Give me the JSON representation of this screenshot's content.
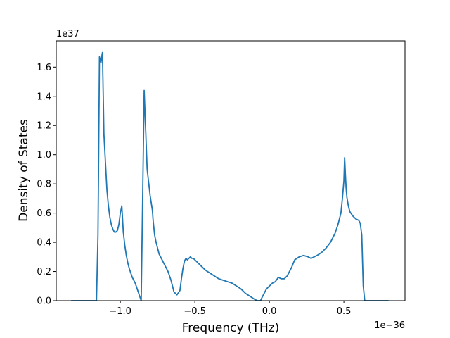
{
  "chart_data": {
    "type": "line",
    "xlabel": "Frequency (THz)",
    "ylabel": "Density of States",
    "x_offset_text": "1e−36",
    "y_offset_text": "1e37",
    "x_scale": "1e-36",
    "y_scale": "1e37",
    "xlim": [
      -1.43,
      0.91
    ],
    "ylim": [
      0.0,
      1.78
    ],
    "x_ticks": [
      -1.0,
      -0.5,
      0.0,
      0.5
    ],
    "x_tick_labels": [
      "−1.0",
      "−0.5",
      "0.0",
      "0.5"
    ],
    "y_ticks": [
      0.0,
      0.2,
      0.4,
      0.6,
      0.8,
      1.0,
      1.2,
      1.4,
      1.6
    ],
    "y_tick_labels": [
      "0.0",
      "0.2",
      "0.4",
      "0.6",
      "0.8",
      "1.0",
      "1.2",
      "1.4",
      "1.6"
    ],
    "grid": false,
    "line_color": "#1f77b4",
    "series": [
      {
        "x": [
          -1.33,
          -1.16,
          -1.15,
          -1.14,
          -1.13,
          -1.125,
          -1.12,
          -1.11,
          -1.1,
          -1.09,
          -1.08,
          -1.07,
          -1.06,
          -1.05,
          -1.04,
          -1.03,
          -1.02,
          -1.01,
          -1.0,
          -0.99,
          -0.98,
          -0.97,
          -0.96,
          -0.95,
          -0.94,
          -0.93,
          -0.92,
          -0.9,
          -0.88,
          -0.86,
          -0.84,
          -0.82,
          -0.8,
          -0.785,
          -0.78,
          -0.775,
          -0.77,
          -0.76,
          -0.75,
          -0.74,
          -0.72,
          -0.7,
          -0.68,
          -0.66,
          -0.64,
          -0.62,
          -0.6,
          -0.59,
          -0.58,
          -0.57,
          -0.56,
          -0.55,
          -0.54,
          -0.53,
          -0.52,
          -0.51,
          -0.5,
          -0.49,
          -0.48,
          -0.47,
          -0.45,
          -0.43,
          -0.4,
          -0.37,
          -0.34,
          -0.31,
          -0.28,
          -0.25,
          -0.22,
          -0.19,
          -0.16,
          -0.13,
          -0.1,
          -0.08,
          -0.06,
          -0.04,
          -0.02,
          0.0,
          0.02,
          0.04,
          0.06,
          0.08,
          0.1,
          0.12,
          0.13,
          0.14,
          0.15,
          0.17,
          0.2,
          0.23,
          0.26,
          0.28,
          0.3,
          0.32,
          0.35,
          0.38,
          0.41,
          0.44,
          0.46,
          0.48,
          0.49,
          0.5,
          0.505,
          0.51,
          0.515,
          0.52,
          0.53,
          0.54,
          0.56,
          0.58,
          0.6,
          0.61,
          0.62,
          0.63,
          0.64,
          0.8
        ],
        "y": [
          0.0,
          0.0,
          0.45,
          1.67,
          1.63,
          1.67,
          1.7,
          1.14,
          0.95,
          0.76,
          0.65,
          0.57,
          0.52,
          0.49,
          0.47,
          0.47,
          0.48,
          0.52,
          0.6,
          0.65,
          0.47,
          0.38,
          0.31,
          0.26,
          0.22,
          0.19,
          0.16,
          0.12,
          0.06,
          0.0,
          1.44,
          0.9,
          0.72,
          0.62,
          0.55,
          0.5,
          0.45,
          0.4,
          0.36,
          0.32,
          0.28,
          0.24,
          0.2,
          0.14,
          0.06,
          0.04,
          0.07,
          0.15,
          0.22,
          0.27,
          0.29,
          0.28,
          0.29,
          0.3,
          0.29,
          0.29,
          0.28,
          0.27,
          0.26,
          0.25,
          0.23,
          0.21,
          0.19,
          0.17,
          0.15,
          0.14,
          0.13,
          0.12,
          0.1,
          0.08,
          0.05,
          0.03,
          0.01,
          0.0,
          0.0,
          0.04,
          0.08,
          0.1,
          0.12,
          0.13,
          0.16,
          0.15,
          0.15,
          0.17,
          0.19,
          0.21,
          0.23,
          0.28,
          0.3,
          0.31,
          0.3,
          0.29,
          0.3,
          0.31,
          0.33,
          0.36,
          0.4,
          0.46,
          0.52,
          0.6,
          0.7,
          0.82,
          0.98,
          0.87,
          0.77,
          0.71,
          0.65,
          0.61,
          0.58,
          0.56,
          0.55,
          0.53,
          0.45,
          0.1,
          0.0,
          0.0
        ]
      }
    ]
  }
}
